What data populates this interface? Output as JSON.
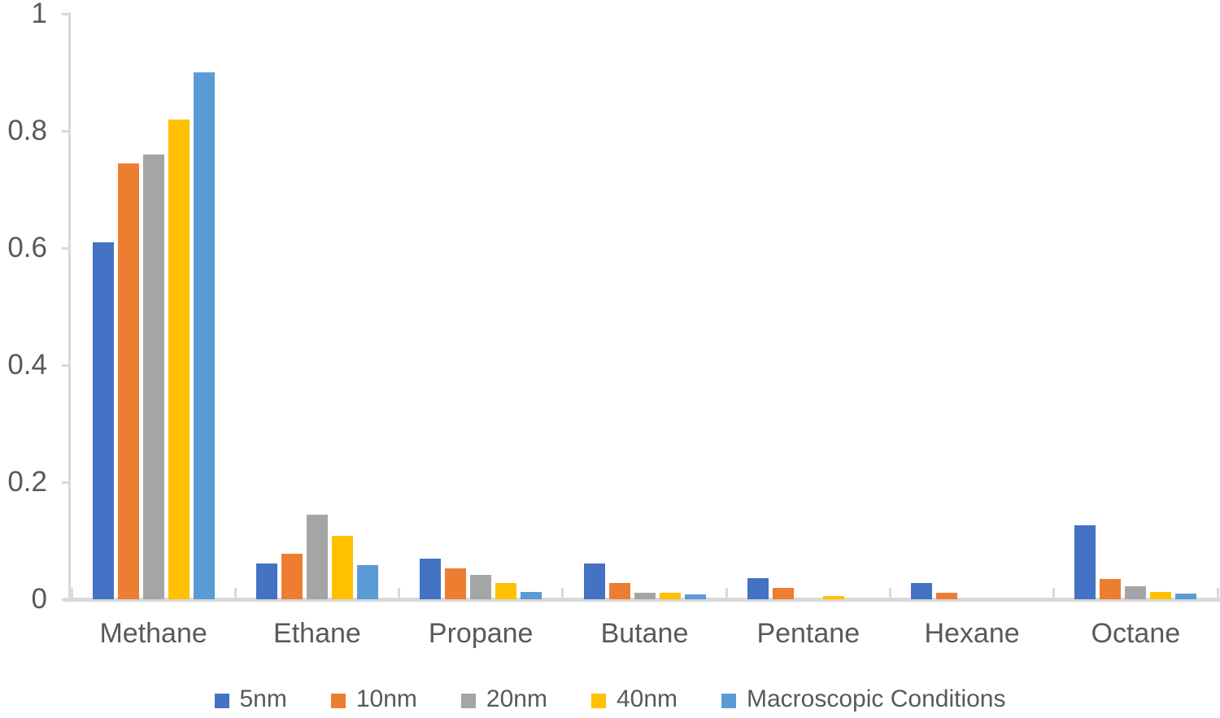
{
  "chart_data": {
    "type": "bar",
    "title": "",
    "xlabel": "",
    "ylabel": "",
    "categories": [
      "Methane",
      "Ethane",
      "Propane",
      "Butane",
      "Pentane",
      "Hexane",
      "Octane"
    ],
    "series": [
      {
        "name": "5nm",
        "color": "#4472C4",
        "values": [
          0.61,
          0.061,
          0.07,
          0.061,
          0.036,
          0.028,
          0.127
        ]
      },
      {
        "name": "10nm",
        "color": "#ED7D31",
        "values": [
          0.745,
          0.078,
          0.053,
          0.028,
          0.019,
          0.011,
          0.035
        ]
      },
      {
        "name": "20nm",
        "color": "#A5A5A5",
        "values": [
          0.76,
          0.145,
          0.042,
          0.011,
          0.0,
          0.0,
          0.022
        ]
      },
      {
        "name": "40nm",
        "color": "#FFC000",
        "values": [
          0.82,
          0.109,
          0.028,
          0.011,
          0.006,
          0.0,
          0.012
        ]
      },
      {
        "name": "Macroscopic Conditions",
        "color": "#5B9BD5",
        "values": [
          0.9,
          0.058,
          0.013,
          0.008,
          0.0,
          0.0,
          0.01
        ]
      }
    ],
    "ylim": [
      0,
      1
    ],
    "yticks": [
      0,
      0.2,
      0.4,
      0.6,
      0.8,
      1
    ],
    "ytick_labels": [
      "0",
      "0.2",
      "0.4",
      "0.6",
      "0.8",
      "1"
    ],
    "grid": false,
    "legend_position": "bottom"
  },
  "style": {
    "axis_color": "#D9D9D9",
    "text_color": "#595959"
  }
}
